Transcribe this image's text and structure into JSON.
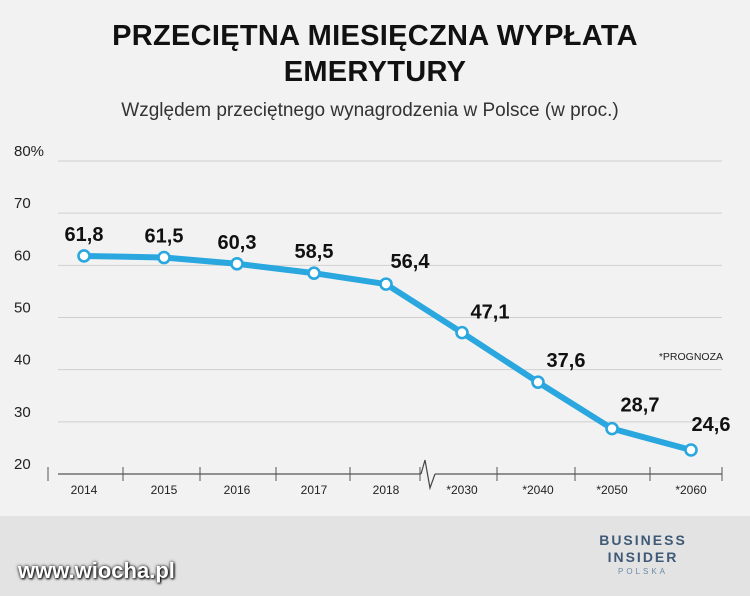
{
  "title_line1": "PRZECIĘTNA MIESIĘCZNA WYPŁATA",
  "title_line2": "EMERYTURY",
  "subtitle": "Względem przeciętnego wynagrodzenia w Polsce (w proc.)",
  "note": "*PROGNOZA",
  "brand": {
    "line1": "BUSINESS",
    "line2": "INSIDER",
    "line3": "POLSKA",
    "color": "#3e5a77"
  },
  "watermark": "www.wiocha.pl",
  "colors": {
    "line": "#2aa7df",
    "grid": "#cfcfcf",
    "background": "#f2f2f2"
  },
  "chart_data": {
    "type": "line",
    "categories": [
      "2014",
      "2015",
      "2016",
      "2017",
      "2018",
      "*2030",
      "*2040",
      "*2050",
      "*2060"
    ],
    "values": [
      61.8,
      61.5,
      60.3,
      58.5,
      56.4,
      47.1,
      37.6,
      28.7,
      24.6
    ],
    "labels": [
      "61,8",
      "61,5",
      "60,3",
      "58,5",
      "56,4",
      "47,1",
      "37,6",
      "28,7",
      "24,6"
    ],
    "y_ticks": [
      "80%",
      "70",
      "60",
      "50",
      "40",
      "30",
      "20"
    ],
    "y_tick_values": [
      80,
      70,
      60,
      50,
      40,
      30,
      20
    ],
    "ylim": [
      20,
      80
    ],
    "axis_break": "between 2018 and 2030",
    "grid": true
  }
}
